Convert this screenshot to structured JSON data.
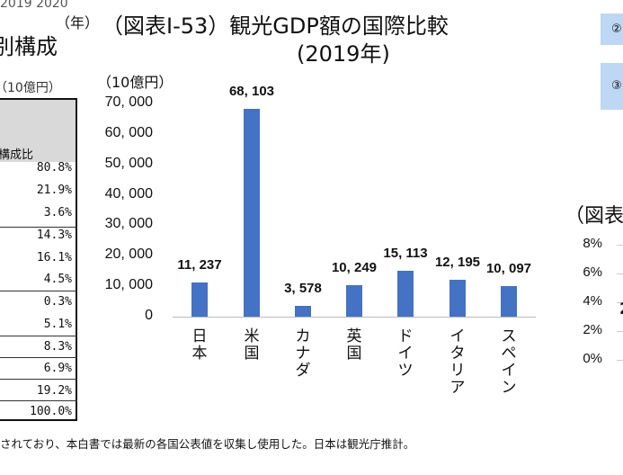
{
  "left_panel": {
    "years": "2019 2020",
    "year_unit": "（年）",
    "title_fragment": "別構成",
    "unit": "（10億円）",
    "header": "構成比",
    "percentages": [
      "80.8%",
      "21.9%",
      "3.6%",
      "14.3%",
      "16.1%",
      "4.5%",
      "0.3%",
      "5.1%",
      "8.3%",
      "6.9%",
      "19.2%",
      "100.0%"
    ]
  },
  "footnote": "されており、本白書では最新の各国公表値を収集し使用した。日本は観光庁推計。",
  "right_panel": {
    "boxes": [
      "②",
      "③"
    ],
    "title_fragment": "（図表",
    "yticks": [
      "8%",
      "6%",
      "4%",
      "2%",
      "0%"
    ],
    "partial_label": "2"
  },
  "chart_data": {
    "type": "bar",
    "title": "（図表Ⅰ-53）観光GDP額の国際比較",
    "subtitle": "(2019年)",
    "ylabel": "（10億円）",
    "categories": [
      "日本",
      "米国",
      "カナダ",
      "英国",
      "ドイツ",
      "イタリア",
      "スペイン"
    ],
    "values": [
      11237,
      68103,
      3578,
      10249,
      15113,
      12195,
      10097
    ],
    "data_labels": [
      "11, 237",
      "68, 103",
      "3, 578",
      "10, 249",
      "15, 113",
      "12, 195",
      "10, 097"
    ],
    "yticks": [
      "0",
      "10, 000",
      "20, 000",
      "30, 000",
      "40, 000",
      "50, 000",
      "60, 000",
      "70, 000"
    ],
    "ylim": [
      0,
      70000
    ],
    "grid": false,
    "bar_color": "#4472c4"
  }
}
